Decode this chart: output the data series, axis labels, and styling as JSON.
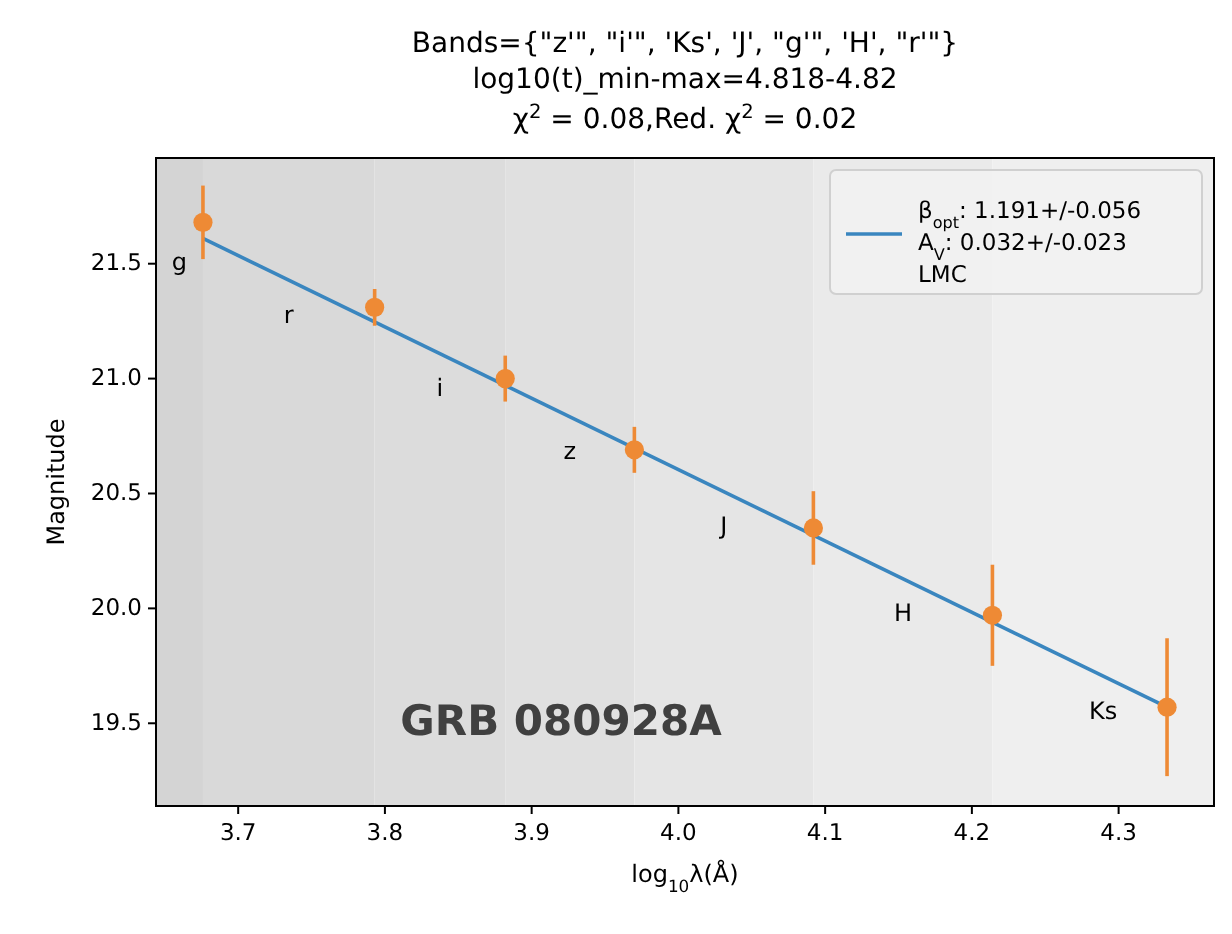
{
  "chart_data": {
    "type": "scatter",
    "title": "Bands={\"z'\", \"i'\", 'Ks', 'J', \"g'\", 'H', \"r'\"}\nlog10(t)_min-max=4.818-4.82",
    "subtitle": "χ$^{2}$ = 0.08,Red. χ$^{2}$ = 0.02",
    "xlabel": "log$_{10}$λ(Å)",
    "ylabel": "Magnitude",
    "xlim": [
      3.644,
      4.365
    ],
    "xticks": [
      3.7,
      3.8,
      3.9,
      {
        "value": 4,
        "label": "4.0"
      },
      4.1,
      4.2,
      4.3
    ],
    "ylim": [
      19.14,
      21.96
    ],
    "yticks": [
      19.5,
      {
        "value": 20,
        "label": "20.0"
      },
      20.5,
      {
        "value": 21,
        "label": "21.0"
      },
      21.5
    ],
    "grid": false,
    "legend": "top right",
    "series": [
      {
        "type": "line",
        "name": "β$_{opt}$: 1.191+/-0.056\nA$_{V}$: 0.032+/-0.023\nLMC",
        "color": "#3a86bf",
        "x": [
          3.676,
          4.333
        ],
        "values": [
          21.61,
          19.57
        ],
        "line_style": "solid",
        "marker": "none"
      },
      {
        "color": "#ee8a35",
        "x": [
          3.676,
          3.793,
          3.882,
          3.97,
          4.092,
          4.214,
          4.333
        ],
        "values": [
          21.68,
          21.31,
          21.0,
          20.69,
          20.35,
          19.97,
          19.57
        ],
        "errors": [
          0.16,
          0.08,
          0.1,
          0.1,
          0.16,
          0.22,
          0.3
        ],
        "marker": "circle"
      }
    ],
    "bands": [
      {
        "axis": "x",
        "from": 3.644,
        "to": 3.676,
        "color": "#d4d4d4"
      },
      {
        "axis": "x",
        "from": 3.676,
        "to": 3.793,
        "color": "#d9d9d9"
      },
      {
        "axis": "x",
        "from": 3.793,
        "to": 3.882,
        "color": "#dcdcdc"
      },
      {
        "axis": "x",
        "from": 3.882,
        "to": 3.97,
        "color": "#e0e0e0"
      },
      {
        "axis": "x",
        "from": 3.97,
        "to": 4.092,
        "color": "#e5e5e5"
      },
      {
        "axis": "x",
        "from": 4.092,
        "to": 4.214,
        "color": "#eaeaea"
      },
      {
        "axis": "x",
        "from": 4.214,
        "to": 4.365,
        "color": "#efefef"
      }
    ],
    "annotations": [
      "g",
      "r",
      "i",
      "z",
      "J",
      "H",
      "Ks",
      "GRB 080928A"
    ]
  }
}
